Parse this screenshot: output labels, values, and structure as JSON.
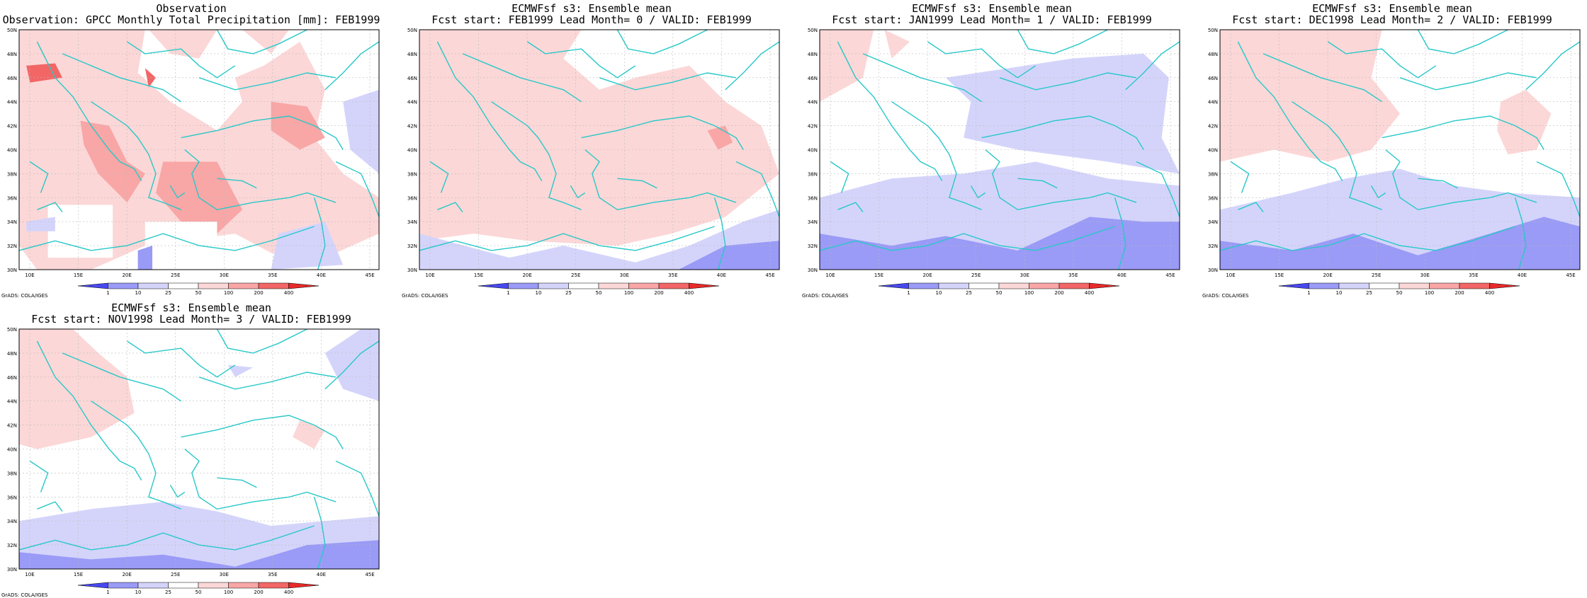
{
  "colorbar": {
    "labels": [
      "1",
      "10",
      "25",
      "50",
      "100",
      "200",
      "400"
    ],
    "colors": [
      "#4848f0",
      "#9a9af7",
      "#d4d4fb",
      "#ffffff",
      "#fcd7d7",
      "#f9a6a6",
      "#f26666",
      "#e82a2a"
    ]
  },
  "map": {
    "lat_labels": [
      "50N",
      "48N",
      "46N",
      "44N",
      "42N",
      "40N",
      "38N",
      "36N",
      "34N",
      "32N",
      "30N"
    ],
    "lon_labels": [
      "10E",
      "15E",
      "20E",
      "25E",
      "30E",
      "35E",
      "40E",
      "45E"
    ],
    "coast_color": "#28c8c8",
    "grid_color": "#bbbbbb"
  },
  "credit": "GrADS: COLA/IGES",
  "panels": [
    {
      "title1": "Observation",
      "title2": "Observation: GPCC Monthly Total Precipitation [mm]: FEB1999"
    },
    {
      "title1": "ECMWFsf s3: Ensemble mean",
      "title2": "Fcst start: FEB1999   Lead Month= 0 / VALID: FEB1999"
    },
    {
      "title1": "ECMWFsf s3: Ensemble mean",
      "title2": "Fcst start: JAN1999   Lead Month= 1 / VALID: FEB1999"
    },
    {
      "title1": "ECMWFsf s3: Ensemble mean",
      "title2": "Fcst start: DEC1998   Lead Month= 2 / VALID: FEB1999"
    },
    {
      "title1": "ECMWFsf s3: Ensemble mean",
      "title2": "Fcst start: NOV1998   Lead Month= 3 / VALID: FEB1999"
    }
  ]
}
